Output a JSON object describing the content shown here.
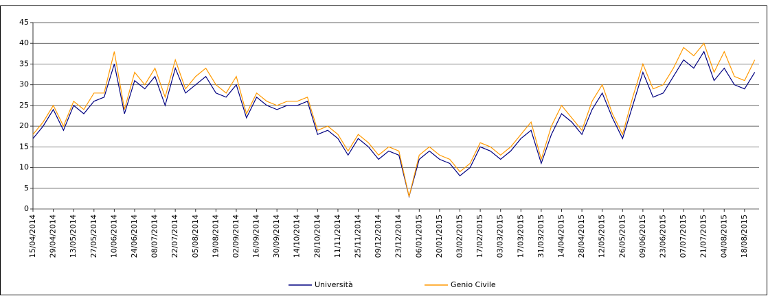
{
  "chart_data": {
    "type": "line",
    "x": [
      "15/04/2014",
      "22/04/2014",
      "29/04/2014",
      "06/05/2014",
      "13/05/2014",
      "20/05/2014",
      "27/05/2014",
      "03/06/2014",
      "10/06/2014",
      "17/06/2014",
      "24/06/2014",
      "01/07/2014",
      "08/07/2014",
      "15/07/2014",
      "22/07/2014",
      "29/07/2014",
      "05/08/2014",
      "12/08/2014",
      "19/08/2014",
      "26/08/2014",
      "02/09/2014",
      "09/09/2014",
      "16/09/2014",
      "23/09/2014",
      "30/09/2014",
      "07/10/2014",
      "14/10/2014",
      "21/10/2014",
      "28/10/2014",
      "04/11/2014",
      "11/11/2014",
      "18/11/2014",
      "25/11/2014",
      "02/12/2014",
      "09/12/2014",
      "16/12/2014",
      "23/12/2014",
      "30/12/2014",
      "06/01/2015",
      "13/01/2015",
      "20/01/2015",
      "27/01/2015",
      "03/02/2015",
      "10/02/2015",
      "17/02/2015",
      "24/02/2015",
      "03/03/2015",
      "10/03/2015",
      "17/03/2015",
      "24/03/2015",
      "31/03/2015",
      "07/04/2015",
      "14/04/2015",
      "21/04/2015",
      "28/04/2015",
      "05/05/2015",
      "12/05/2015",
      "19/05/2015",
      "26/05/2015",
      "02/06/2015",
      "09/06/2015",
      "16/06/2015",
      "23/06/2015",
      "30/06/2015",
      "07/07/2015",
      "14/07/2015",
      "21/07/2015",
      "28/07/2015",
      "04/08/2015",
      "11/08/2015",
      "18/08/2015",
      "25/08/2015"
    ],
    "xlim": [
      "15/04/2014",
      "28/08/2015"
    ],
    "xticks": [
      "15/04/2014",
      "29/04/2014",
      "13/05/2014",
      "27/05/2014",
      "10/06/2014",
      "24/06/2014",
      "08/07/2014",
      "22/07/2014",
      "05/08/2014",
      "19/08/2014",
      "02/09/2014",
      "16/09/2014",
      "30/09/2014",
      "14/10/2014",
      "28/10/2014",
      "11/11/2014",
      "25/11/2014",
      "09/12/2014",
      "23/12/2014",
      "06/01/2015",
      "20/01/2015",
      "03/02/2015",
      "17/02/2015",
      "03/03/2015",
      "17/03/2015",
      "31/03/2015",
      "14/04/2015",
      "28/04/2015",
      "12/05/2015",
      "26/05/2015",
      "09/06/2015",
      "23/06/2015",
      "07/07/2015",
      "21/07/2015",
      "04/08/2015",
      "18/08/2015"
    ],
    "ylim": [
      0,
      45
    ],
    "yticks": [
      0,
      5,
      10,
      15,
      20,
      25,
      30,
      35,
      40,
      45
    ],
    "grid": true,
    "series": [
      {
        "name": "Università",
        "color": "#000080",
        "values": [
          17,
          20,
          24,
          19,
          25,
          23,
          26,
          27,
          35,
          23,
          31,
          29,
          32,
          25,
          34,
          28,
          30,
          32,
          28,
          27,
          30,
          22,
          27,
          25,
          24,
          25,
          25,
          26,
          18,
          19,
          17,
          13,
          17,
          15,
          12,
          14,
          13,
          3,
          12,
          14,
          12,
          11,
          8,
          10,
          15,
          14,
          12,
          14,
          17,
          19,
          11,
          18,
          23,
          21,
          18,
          24,
          28,
          22,
          17,
          25,
          33,
          27,
          28,
          32,
          36,
          34,
          38,
          31,
          34,
          30,
          29,
          33
        ]
      },
      {
        "name": "Genio Civile",
        "color": "#ff9900",
        "values": [
          18,
          21,
          25,
          20,
          26,
          24,
          28,
          28,
          38,
          24,
          33,
          30,
          34,
          27,
          36,
          29,
          32,
          34,
          30,
          28,
          32,
          23,
          28,
          26,
          25,
          26,
          26,
          27,
          19,
          20,
          18,
          14,
          18,
          16,
          13,
          15,
          14,
          3,
          13,
          15,
          13,
          12,
          9,
          11,
          16,
          15,
          13,
          15,
          18,
          21,
          12,
          20,
          25,
          22,
          19,
          26,
          30,
          23,
          18,
          27,
          35,
          29,
          30,
          34,
          39,
          37,
          40,
          33,
          38,
          32,
          31,
          36
        ]
      }
    ],
    "legend": "bottom"
  }
}
